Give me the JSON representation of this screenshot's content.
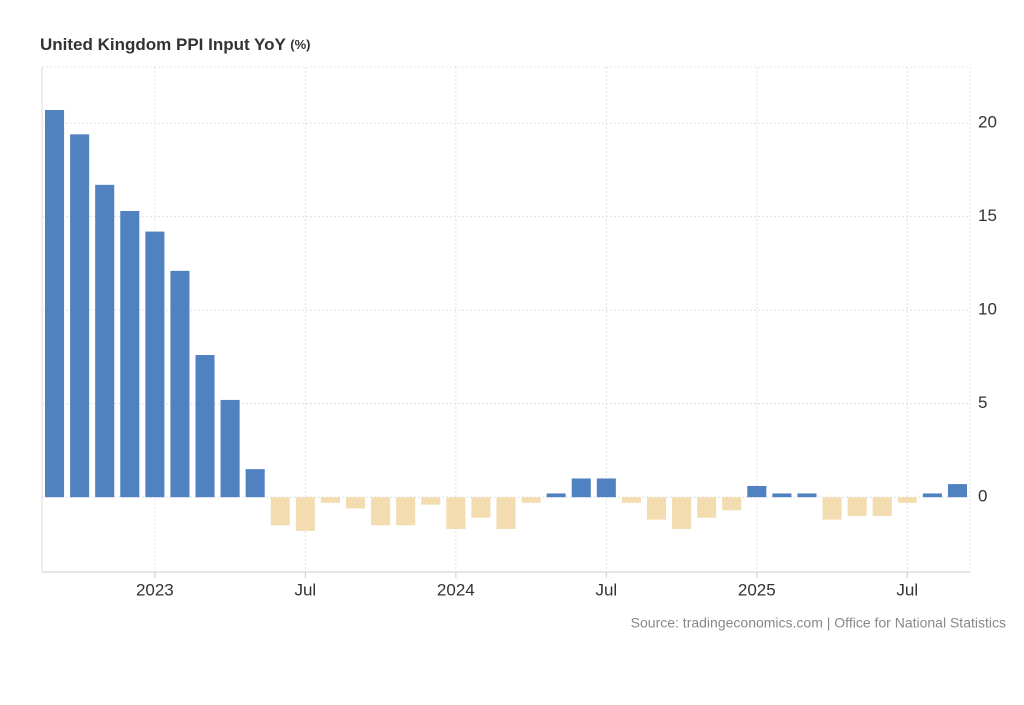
{
  "chart_data": {
    "type": "bar",
    "title": "United Kingdom PPI Input YoY",
    "unit": "(%)",
    "source": "Source: tradingeconomics.com | Office for National Statistics",
    "categories": [
      null,
      null,
      null,
      null,
      "2023",
      null,
      null,
      null,
      null,
      null,
      "Jul",
      null,
      null,
      null,
      null,
      null,
      "2024",
      null,
      null,
      null,
      null,
      null,
      "Jul",
      null,
      null,
      null,
      null,
      null,
      "2025",
      null,
      null,
      null,
      null,
      null,
      "Jul",
      null,
      null
    ],
    "values": [
      20.7,
      19.4,
      16.7,
      15.3,
      14.2,
      12.1,
      7.6,
      5.2,
      1.5,
      -1.5,
      -1.8,
      -0.3,
      -0.6,
      -1.5,
      -1.5,
      -0.4,
      -1.7,
      -1.1,
      -1.7,
      -0.3,
      0.2,
      1.0,
      1.0,
      -0.3,
      -1.2,
      -1.7,
      -1.1,
      -0.7,
      0.6,
      0.2,
      0.2,
      -1.2,
      -1.0,
      -1.0,
      -0.3,
      0.2,
      0.7
    ],
    "positive_color": "#5081c0",
    "negative_color": "#f3dcb0",
    "ylim": [
      -4,
      23
    ],
    "yticks": [
      0,
      5,
      10,
      15,
      20
    ],
    "grid": true
  }
}
